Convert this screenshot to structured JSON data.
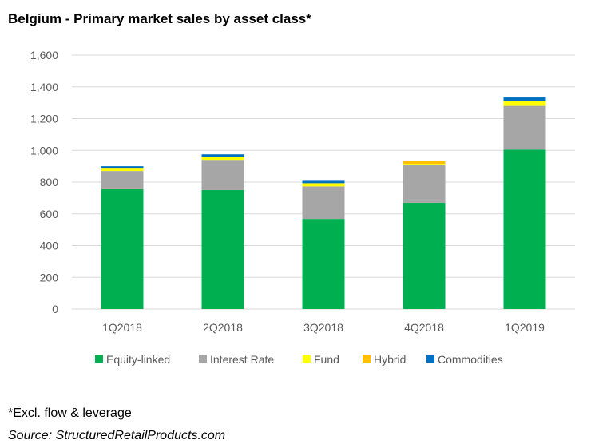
{
  "title": "Belgium - Primary market sales by asset class*",
  "footnote": "*Excl. flow & leverage",
  "source": "Source: StructuredRetailProducts.com",
  "chart_data": {
    "type": "bar",
    "stacked": true,
    "title": "Belgium - Primary market sales by asset class*",
    "xlabel": "",
    "ylabel": "",
    "categories": [
      "1Q2018",
      "2Q2018",
      "3Q2018",
      "4Q2018",
      "1Q2019"
    ],
    "ylim": [
      0,
      1600
    ],
    "yticks": [
      0,
      200,
      400,
      600,
      800,
      1000,
      1200,
      1400,
      1600
    ],
    "ytick_labels": [
      "0",
      "200",
      "400",
      "600",
      "800",
      "1,000",
      "1,200",
      "1,400",
      "1,600"
    ],
    "grid": true,
    "legend_position": "bottom",
    "series": [
      {
        "name": "Equity-linked",
        "color": "#00B050",
        "values": [
          755,
          750,
          568,
          670,
          1005
        ]
      },
      {
        "name": "Interest Rate",
        "color": "#A6A6A6",
        "values": [
          115,
          190,
          205,
          240,
          275
        ]
      },
      {
        "name": "Fund",
        "color": "#FFFF00",
        "values": [
          15,
          20,
          20,
          5,
          33
        ]
      },
      {
        "name": "Hybrid",
        "color": "#FFC000",
        "values": [
          0,
          0,
          0,
          20,
          0
        ]
      },
      {
        "name": "Commodities",
        "color": "#0070C0",
        "values": [
          15,
          15,
          15,
          0,
          20
        ]
      }
    ]
  }
}
